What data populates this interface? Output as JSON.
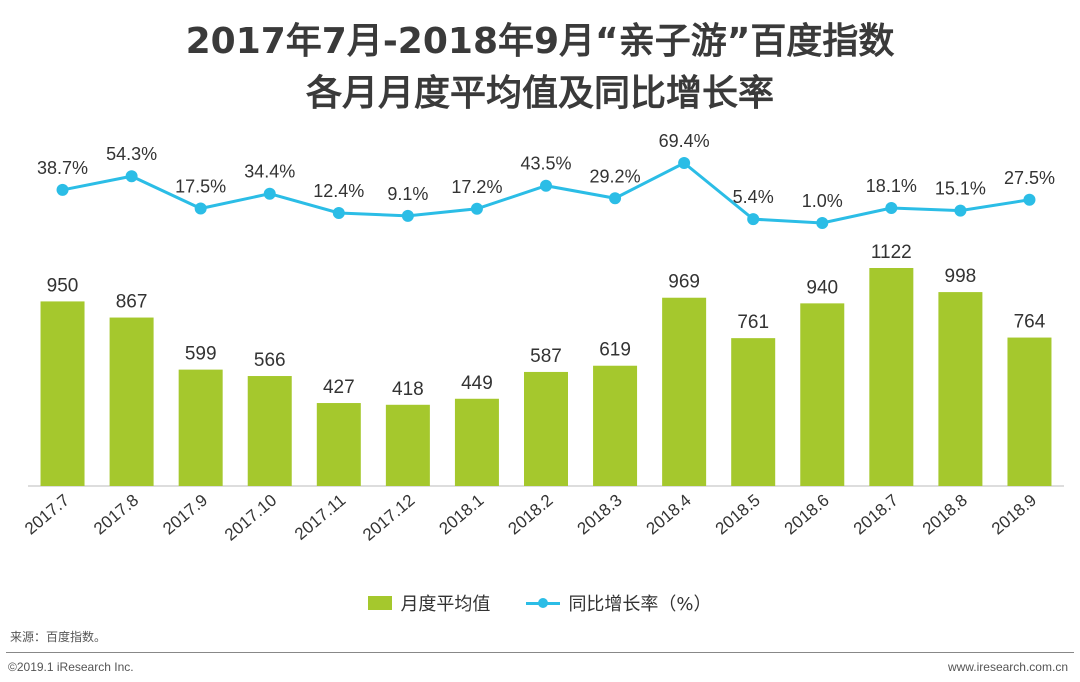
{
  "title": {
    "line1": "2017年7月-2018年9月“亲子游”百度指数",
    "line2": "各月月度平均值及同比增长率"
  },
  "chart_data": {
    "type": "bar+line",
    "categories": [
      "2017.7",
      "2017.8",
      "2017.9",
      "2017.10",
      "2017.11",
      "2017.12",
      "2018.1",
      "2018.2",
      "2018.3",
      "2018.4",
      "2018.5",
      "2018.6",
      "2018.7",
      "2018.8",
      "2018.9"
    ],
    "series": [
      {
        "name": "月度平均值",
        "type": "bar",
        "color": "#a5c82d",
        "values": [
          950,
          867,
          599,
          566,
          427,
          418,
          449,
          587,
          619,
          969,
          761,
          940,
          1122,
          998,
          764
        ],
        "labels": [
          "950",
          "867",
          "599",
          "566",
          "427",
          "418",
          "449",
          "587",
          "619",
          "969",
          "761",
          "940",
          "1122",
          "998",
          "764"
        ]
      },
      {
        "name": "同比增长率（%）",
        "type": "line",
        "color": "#2bbde6",
        "values": [
          38.7,
          54.3,
          17.5,
          34.4,
          12.4,
          9.1,
          17.2,
          43.5,
          29.2,
          69.4,
          5.4,
          1.0,
          18.1,
          15.1,
          27.5
        ],
        "labels": [
          "38.7%",
          "54.3%",
          "17.5%",
          "34.4%",
          "12.4%",
          "9.1%",
          "17.2%",
          "43.5%",
          "29.2%",
          "69.4%",
          "5.4%",
          "1.0%",
          "18.1%",
          "15.1%",
          "27.5%"
        ]
      }
    ],
    "bar_ylim": [
      0,
      1200
    ],
    "line_ylim": [
      0,
      70
    ]
  },
  "legend": {
    "bar_label": "月度平均值",
    "line_label": "同比增长率（%）"
  },
  "footer": {
    "source": "来源：百度指数。",
    "copyright": "©2019.1 iResearch Inc.",
    "website": "www.iresearch.com.cn"
  }
}
